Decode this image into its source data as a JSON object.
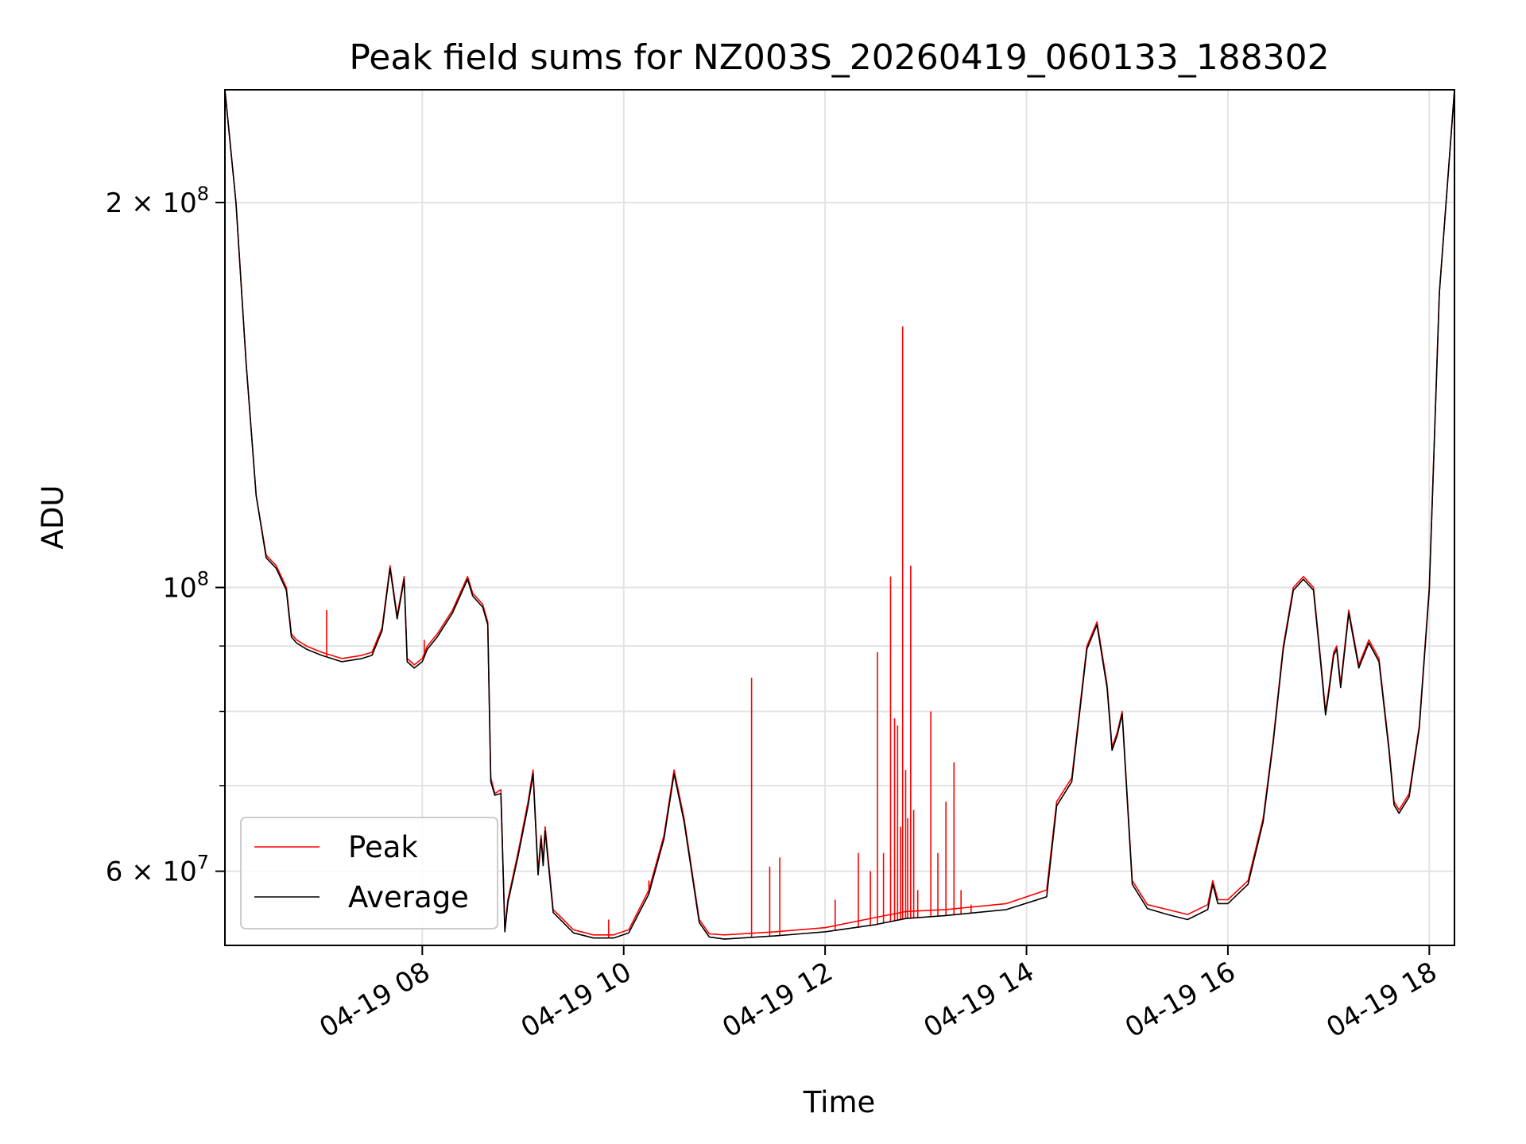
{
  "chart_data": {
    "type": "line",
    "title": "Peak field sums for NZ003S_20260419_060133_188302",
    "xlabel": "Time",
    "ylabel": "ADU",
    "yscale": "log",
    "grid": true,
    "legend_position": "lower-left",
    "x_unit": "hours since 04-19 00:00",
    "xlim": [
      6.04,
      18.25
    ],
    "ylim": [
      52500000.0,
      245000000.0
    ],
    "x_ticks": [
      {
        "value": 8,
        "label": "04-19 08"
      },
      {
        "value": 10,
        "label": "04-19 10"
      },
      {
        "value": 12,
        "label": "04-19 12"
      },
      {
        "value": 14,
        "label": "04-19 14"
      },
      {
        "value": 16,
        "label": "04-19 16"
      },
      {
        "value": 18,
        "label": "04-19 18"
      }
    ],
    "y_major_ticks": [
      {
        "value": 200000000,
        "mant": "2",
        "exp": "8"
      },
      {
        "value": 100000000,
        "mant": "",
        "exp": "8"
      },
      {
        "value": 60000000,
        "mant": "6",
        "exp": "7"
      }
    ],
    "y_minor_ticks": [
      90000000,
      80000000,
      70000000
    ],
    "series": [
      {
        "name": "Peak",
        "color": "#ff0000",
        "x": [
          6.04,
          6.15,
          6.25,
          6.35,
          6.45,
          6.55,
          6.65,
          6.7,
          6.75,
          6.85,
          7.0,
          7.2,
          7.4,
          7.5,
          7.6,
          7.68,
          7.75,
          7.82,
          7.85,
          7.92,
          8.0,
          8.05,
          8.15,
          8.3,
          8.45,
          8.5,
          8.6,
          8.65,
          8.68,
          8.72,
          8.78,
          8.82,
          8.85,
          8.95,
          9.05,
          9.1,
          9.15,
          9.18,
          9.2,
          9.22,
          9.3,
          9.4,
          9.5,
          9.7,
          9.9,
          10.05,
          10.25,
          10.4,
          10.5,
          10.6,
          10.75,
          10.85,
          11.0,
          11.5,
          12.0,
          12.5,
          12.8,
          13.2,
          13.8,
          14.2,
          14.3,
          14.45,
          14.6,
          14.7,
          14.8,
          14.85,
          14.9,
          14.95,
          15.05,
          15.2,
          15.4,
          15.6,
          15.8,
          15.85,
          15.9,
          16.0,
          16.2,
          16.35,
          16.45,
          16.55,
          16.65,
          16.75,
          16.85,
          16.92,
          16.97,
          17.0,
          17.05,
          17.08,
          17.12,
          17.2,
          17.3,
          17.4,
          17.5,
          17.6,
          17.65,
          17.7,
          17.8,
          17.9,
          18.0,
          18.1,
          18.25
        ],
        "values": [
          245000000,
          200000000,
          150000000,
          118000000,
          106000000,
          104000000,
          100000000,
          92000000,
          91000000,
          90000000,
          89000000,
          88000000,
          88500000,
          89000000,
          93000000,
          104000000,
          95000000,
          102000000,
          88000000,
          87000000,
          88000000,
          90000000,
          92000000,
          96000000,
          102000000,
          99000000,
          97000000,
          94000000,
          71000000,
          69000000,
          69500000,
          54000000,
          57000000,
          62000000,
          68000000,
          72000000,
          60000000,
          64000000,
          61000000,
          65000000,
          56000000,
          55000000,
          54000000,
          53500000,
          53500000,
          54000000,
          58000000,
          64000000,
          72000000,
          66000000,
          55000000,
          53600000,
          53500000,
          53800000,
          54200000,
          55200000,
          55800000,
          56000000,
          56600000,
          58000000,
          68000000,
          71000000,
          90000000,
          94000000,
          84000000,
          75000000,
          77000000,
          80000000,
          59000000,
          56500000,
          56000000,
          55500000,
          56500000,
          59000000,
          57000000,
          57000000,
          59000000,
          66000000,
          76000000,
          90000000,
          100000000,
          102000000,
          100000000,
          88000000,
          80000000,
          83000000,
          89000000,
          90000000,
          84000000,
          96000000,
          87000000,
          91000000,
          88000000,
          75000000,
          68000000,
          67000000,
          69000000,
          78000000,
          100000000,
          170000000,
          245000000
        ]
      },
      {
        "name": "Average",
        "color": "#000000",
        "x": [
          6.04,
          6.15,
          6.25,
          6.35,
          6.45,
          6.55,
          6.65,
          6.7,
          6.75,
          6.85,
          7.0,
          7.2,
          7.4,
          7.5,
          7.6,
          7.68,
          7.75,
          7.82,
          7.85,
          7.92,
          8.0,
          8.05,
          8.15,
          8.3,
          8.45,
          8.5,
          8.6,
          8.65,
          8.68,
          8.72,
          8.78,
          8.82,
          8.85,
          8.95,
          9.05,
          9.1,
          9.15,
          9.18,
          9.2,
          9.22,
          9.3,
          9.4,
          9.5,
          9.7,
          9.9,
          10.05,
          10.25,
          10.4,
          10.5,
          10.6,
          10.75,
          10.85,
          11.0,
          11.5,
          12.0,
          12.5,
          12.8,
          13.2,
          13.8,
          14.2,
          14.3,
          14.45,
          14.6,
          14.7,
          14.8,
          14.85,
          14.9,
          14.95,
          15.05,
          15.2,
          15.4,
          15.6,
          15.8,
          15.85,
          15.9,
          16.0,
          16.2,
          16.35,
          16.45,
          16.55,
          16.65,
          16.75,
          16.85,
          16.92,
          16.97,
          17.0,
          17.05,
          17.08,
          17.12,
          17.2,
          17.3,
          17.4,
          17.5,
          17.6,
          17.65,
          17.7,
          17.8,
          17.9,
          18.0,
          18.1,
          18.25
        ],
        "values": [
          245000000,
          200000000,
          150000000,
          118000000,
          105500000,
          103500000,
          99500000,
          91500000,
          90500000,
          89500000,
          88500000,
          87500000,
          88000000,
          88500000,
          92500000,
          103500000,
          94500000,
          101500000,
          87500000,
          86500000,
          87500000,
          89500000,
          91500000,
          95500000,
          101500000,
          98500000,
          96500000,
          93500000,
          70500000,
          68800000,
          69000000,
          53800000,
          56700000,
          61600000,
          67500000,
          71500000,
          59600000,
          63600000,
          60600000,
          64500000,
          55700000,
          54700000,
          53700000,
          53200000,
          53200000,
          53700000,
          57600000,
          63600000,
          71500000,
          65600000,
          54700000,
          53300000,
          53100000,
          53400000,
          53800000,
          54500000,
          55100000,
          55400000,
          56000000,
          57300000,
          67500000,
          70500000,
          89500000,
          93500000,
          83500000,
          74600000,
          76600000,
          79600000,
          58600000,
          56100000,
          55500000,
          55000000,
          56000000,
          58600000,
          56600000,
          56600000,
          58600000,
          65600000,
          75600000,
          89500000,
          99500000,
          101500000,
          99500000,
          87500000,
          79500000,
          82500000,
          88500000,
          89500000,
          83500000,
          95500000,
          86500000,
          90500000,
          87500000,
          74600000,
          67600000,
          66600000,
          68600000,
          77600000,
          99500000,
          170000000,
          245000000
        ]
      }
    ],
    "peak_spikes": [
      {
        "x": 7.05,
        "value": 96000000
      },
      {
        "x": 8.02,
        "value": 91000000
      },
      {
        "x": 9.85,
        "value": 55000000
      },
      {
        "x": 10.25,
        "value": 59000000
      },
      {
        "x": 11.27,
        "value": 85000000
      },
      {
        "x": 11.45,
        "value": 60500000
      },
      {
        "x": 11.55,
        "value": 61500000
      },
      {
        "x": 12.1,
        "value": 57000000
      },
      {
        "x": 12.33,
        "value": 62000000
      },
      {
        "x": 12.45,
        "value": 60000000
      },
      {
        "x": 12.52,
        "value": 89000000
      },
      {
        "x": 12.58,
        "value": 62000000
      },
      {
        "x": 12.65,
        "value": 102000000
      },
      {
        "x": 12.69,
        "value": 79000000
      },
      {
        "x": 12.72,
        "value": 78000000
      },
      {
        "x": 12.75,
        "value": 65000000
      },
      {
        "x": 12.77,
        "value": 160000000
      },
      {
        "x": 12.8,
        "value": 72000000
      },
      {
        "x": 12.82,
        "value": 66000000
      },
      {
        "x": 12.85,
        "value": 104000000
      },
      {
        "x": 12.88,
        "value": 67000000
      },
      {
        "x": 12.92,
        "value": 58000000
      },
      {
        "x": 13.05,
        "value": 80000000
      },
      {
        "x": 13.12,
        "value": 62000000
      },
      {
        "x": 13.2,
        "value": 68000000
      },
      {
        "x": 13.28,
        "value": 73000000
      },
      {
        "x": 13.35,
        "value": 58000000
      },
      {
        "x": 13.45,
        "value": 56500000
      }
    ]
  }
}
